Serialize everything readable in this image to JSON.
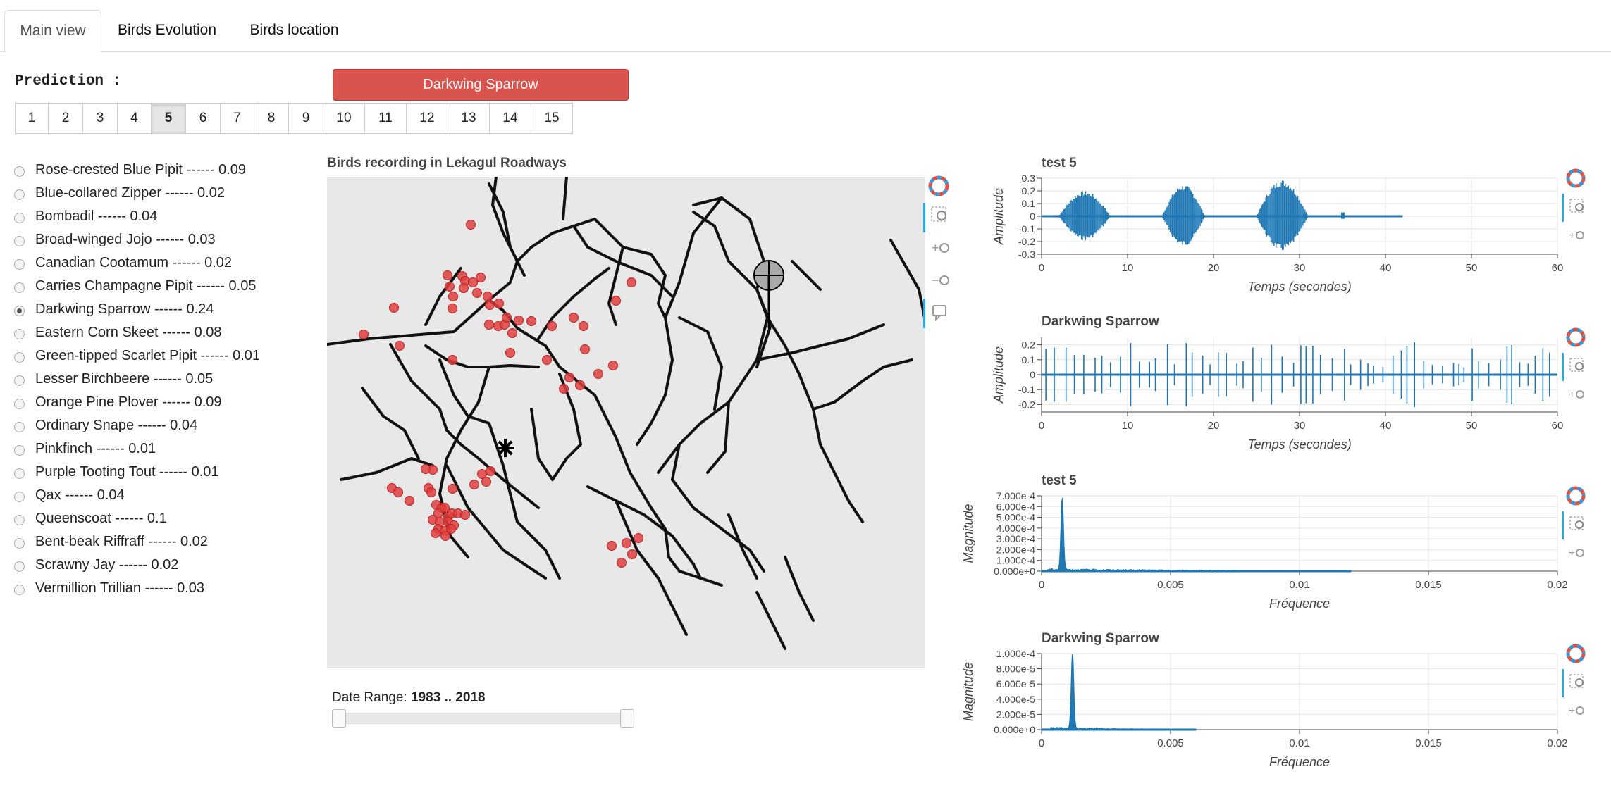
{
  "tabs": [
    "Main view",
    "Birds Evolution",
    "Birds location"
  ],
  "prediction_label": "Prediction :",
  "prediction_value": "Darkwing Sparrow",
  "pager": {
    "pages": [
      "1",
      "2",
      "3",
      "4",
      "5",
      "6",
      "7",
      "8",
      "9",
      "10",
      "11",
      "12",
      "13",
      "14",
      "15"
    ],
    "active": "5"
  },
  "species": [
    {
      "label": "Rose-crested Blue Pipit ------ 0.09"
    },
    {
      "label": "Blue-collared Zipper ------ 0.02"
    },
    {
      "label": "Bombadil ------ 0.04"
    },
    {
      "label": "Broad-winged Jojo ------ 0.03"
    },
    {
      "label": "Canadian Cootamum ------ 0.02"
    },
    {
      "label": "Carries Champagne Pipit ------ 0.05"
    },
    {
      "label": "Darkwing Sparrow ------ 0.24",
      "selected": true
    },
    {
      "label": "Eastern Corn Skeet ------ 0.08"
    },
    {
      "label": "Green-tipped Scarlet Pipit ------ 0.01"
    },
    {
      "label": "Lesser Birchbeere ------ 0.05"
    },
    {
      "label": "Orange Pine Plover ------ 0.09"
    },
    {
      "label": "Ordinary Snape ------ 0.04"
    },
    {
      "label": "Pinkfinch ------ 0.01"
    },
    {
      "label": "Purple Tooting Tout ------ 0.01"
    },
    {
      "label": "Qax ------ 0.04"
    },
    {
      "label": "Queenscoat ------ 0.1"
    },
    {
      "label": "Bent-beak Riffraff ------ 0.02"
    },
    {
      "label": "Scrawny Jay ------ 0.02"
    },
    {
      "label": "Vermillion Trillian ------ 0.03"
    }
  ],
  "map": {
    "title": "Birds recording in Lekagul Roadways",
    "point_color": "#e04040",
    "road_color": "#111111"
  },
  "date_range": {
    "label": "Date Range:",
    "value": "1983 .. 2018",
    "min": 1983,
    "max": 2018
  },
  "colors": {
    "accent": "#d9534f",
    "series": "#1f77b4"
  },
  "chart_data": [
    {
      "type": "line",
      "title": "test 5",
      "xlabel": "Temps (secondes)",
      "ylabel": "Amplitude",
      "xlim": [
        0,
        60
      ],
      "ylim": [
        -0.3,
        0.3
      ],
      "xticks": [
        "0",
        "10",
        "20",
        "30",
        "40",
        "50",
        "60"
      ],
      "yticks": [
        "0.3",
        "0.2",
        "0.1",
        "0",
        "-0.1",
        "-0.2",
        "-0.3"
      ],
      "bursts": [
        [
          2,
          8,
          0.2
        ],
        [
          14,
          19,
          0.25
        ],
        [
          25,
          31,
          0.29
        ]
      ],
      "signal_end": 42
    },
    {
      "type": "line",
      "title": "Darkwing Sparrow",
      "xlabel": "Temps (secondes)",
      "ylabel": "Amplitude",
      "xlim": [
        0,
        60
      ],
      "ylim": [
        -0.25,
        0.25
      ],
      "xticks": [
        "0",
        "10",
        "20",
        "30",
        "40",
        "50",
        "60"
      ],
      "yticks": [
        "0.2",
        "0.1",
        "0",
        "-0.1",
        "-0.2"
      ],
      "signal_end": 60
    },
    {
      "type": "area",
      "title": "test 5",
      "xlabel": "Fréquence",
      "ylabel": "Magnitude",
      "xlim": [
        0,
        0.02
      ],
      "ylim": [
        0,
        0.0007
      ],
      "xticks": [
        "0",
        "0.005",
        "0.01",
        "0.015",
        "0.02"
      ],
      "yticks": [
        "7.000e-4",
        "6.000e-4",
        "5.000e-4",
        "4.000e-4",
        "3.000e-4",
        "2.000e-4",
        "1.000e-4",
        "0.000e+0"
      ],
      "peak_x": 0.0008,
      "peak_y": 0.00068,
      "signal_end": 0.012
    },
    {
      "type": "area",
      "title": "Darkwing Sparrow",
      "xlabel": "Fréquence",
      "ylabel": "Magnitude",
      "xlim": [
        0,
        0.02
      ],
      "ylim": [
        0,
        0.0001
      ],
      "xticks": [
        "0",
        "0.005",
        "0.01",
        "0.015",
        "0.02"
      ],
      "yticks": [
        "1.000e-4",
        "8.000e-5",
        "6.000e-5",
        "4.000e-5",
        "2.000e-5",
        "0.000e+0"
      ],
      "peak_x": 0.0012,
      "peak_y": 0.0001,
      "signal_end": 0.006
    }
  ]
}
